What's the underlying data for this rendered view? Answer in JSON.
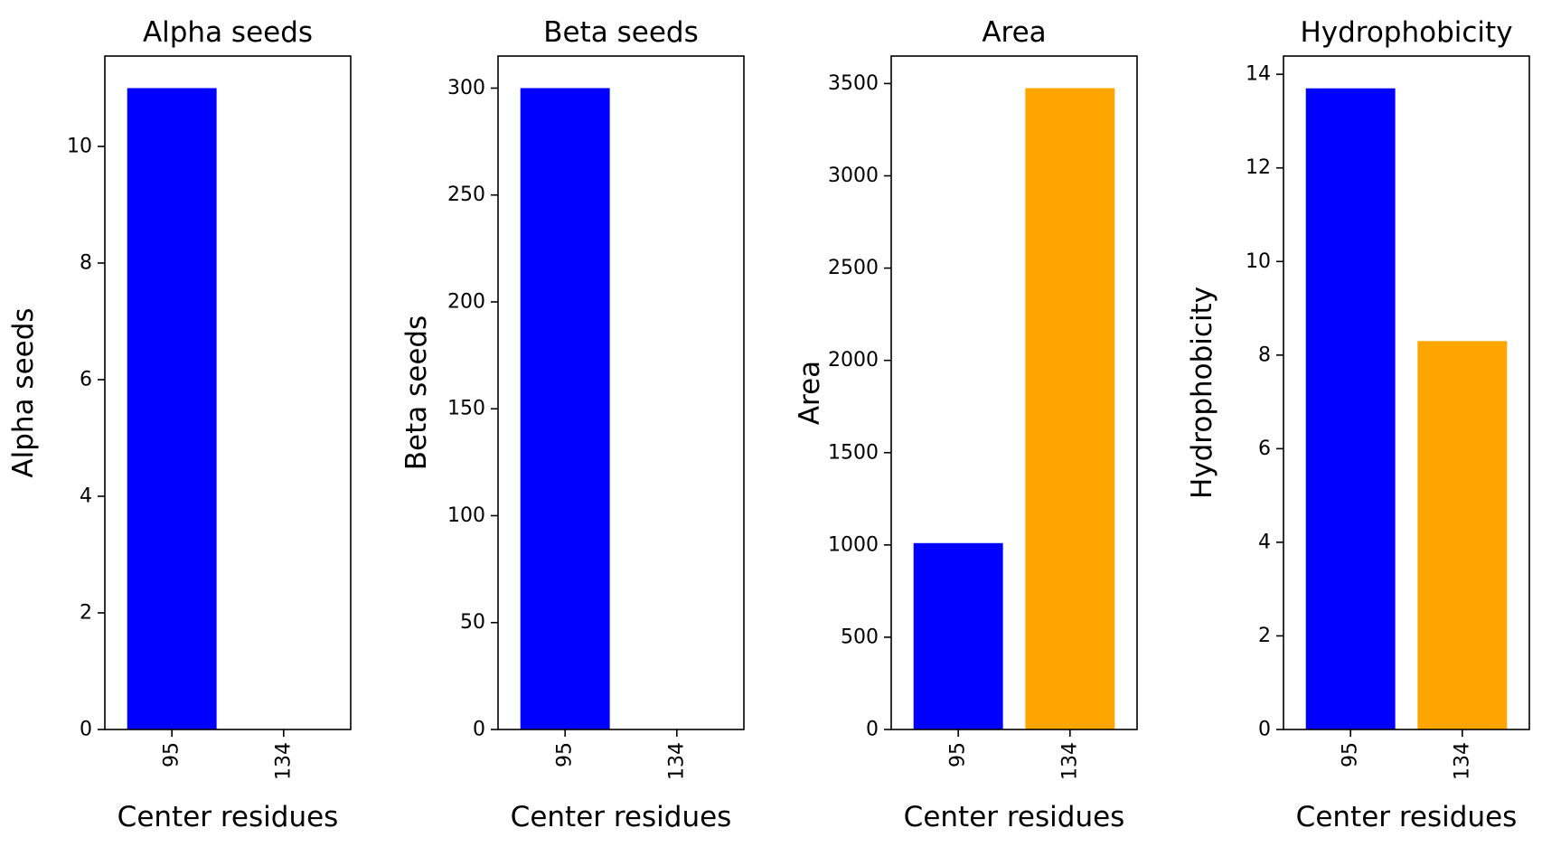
{
  "chart_data": [
    {
      "type": "bar",
      "title": "Alpha seeds",
      "xlabel": "Center residues",
      "ylabel": "Alpha seeds",
      "categories": [
        "95",
        "134"
      ],
      "values": [
        11,
        0
      ],
      "colors": [
        "#0000ff",
        "#ffa500"
      ],
      "ylim": [
        0,
        11.55
      ],
      "yticks": [
        0,
        2,
        4,
        6,
        8,
        10
      ],
      "grid": false
    },
    {
      "type": "bar",
      "title": "Beta seeds",
      "xlabel": "Center residues",
      "ylabel": "Beta seeds",
      "categories": [
        "95",
        "134"
      ],
      "values": [
        300,
        0
      ],
      "colors": [
        "#0000ff",
        "#ffa500"
      ],
      "ylim": [
        0,
        315
      ],
      "yticks": [
        0,
        50,
        100,
        150,
        200,
        250,
        300
      ],
      "grid": false
    },
    {
      "type": "bar",
      "title": "Area",
      "xlabel": "Center residues",
      "ylabel": "Area",
      "categories": [
        "95",
        "134"
      ],
      "values": [
        1010,
        3475
      ],
      "colors": [
        "#0000ff",
        "#ffa500"
      ],
      "ylim": [
        0,
        3649
      ],
      "yticks": [
        0,
        500,
        1000,
        1500,
        2000,
        2500,
        3000,
        3500
      ],
      "grid": false
    },
    {
      "type": "bar",
      "title": "Hydrophobicity",
      "xlabel": "Center residues",
      "ylabel": "Hydrophobicity",
      "categories": [
        "95",
        "134"
      ],
      "values": [
        13.7,
        8.3
      ],
      "colors": [
        "#0000ff",
        "#ffa500"
      ],
      "ylim": [
        0,
        14.39
      ],
      "yticks": [
        0,
        2,
        4,
        6,
        8,
        10,
        12,
        14
      ],
      "grid": false
    }
  ]
}
